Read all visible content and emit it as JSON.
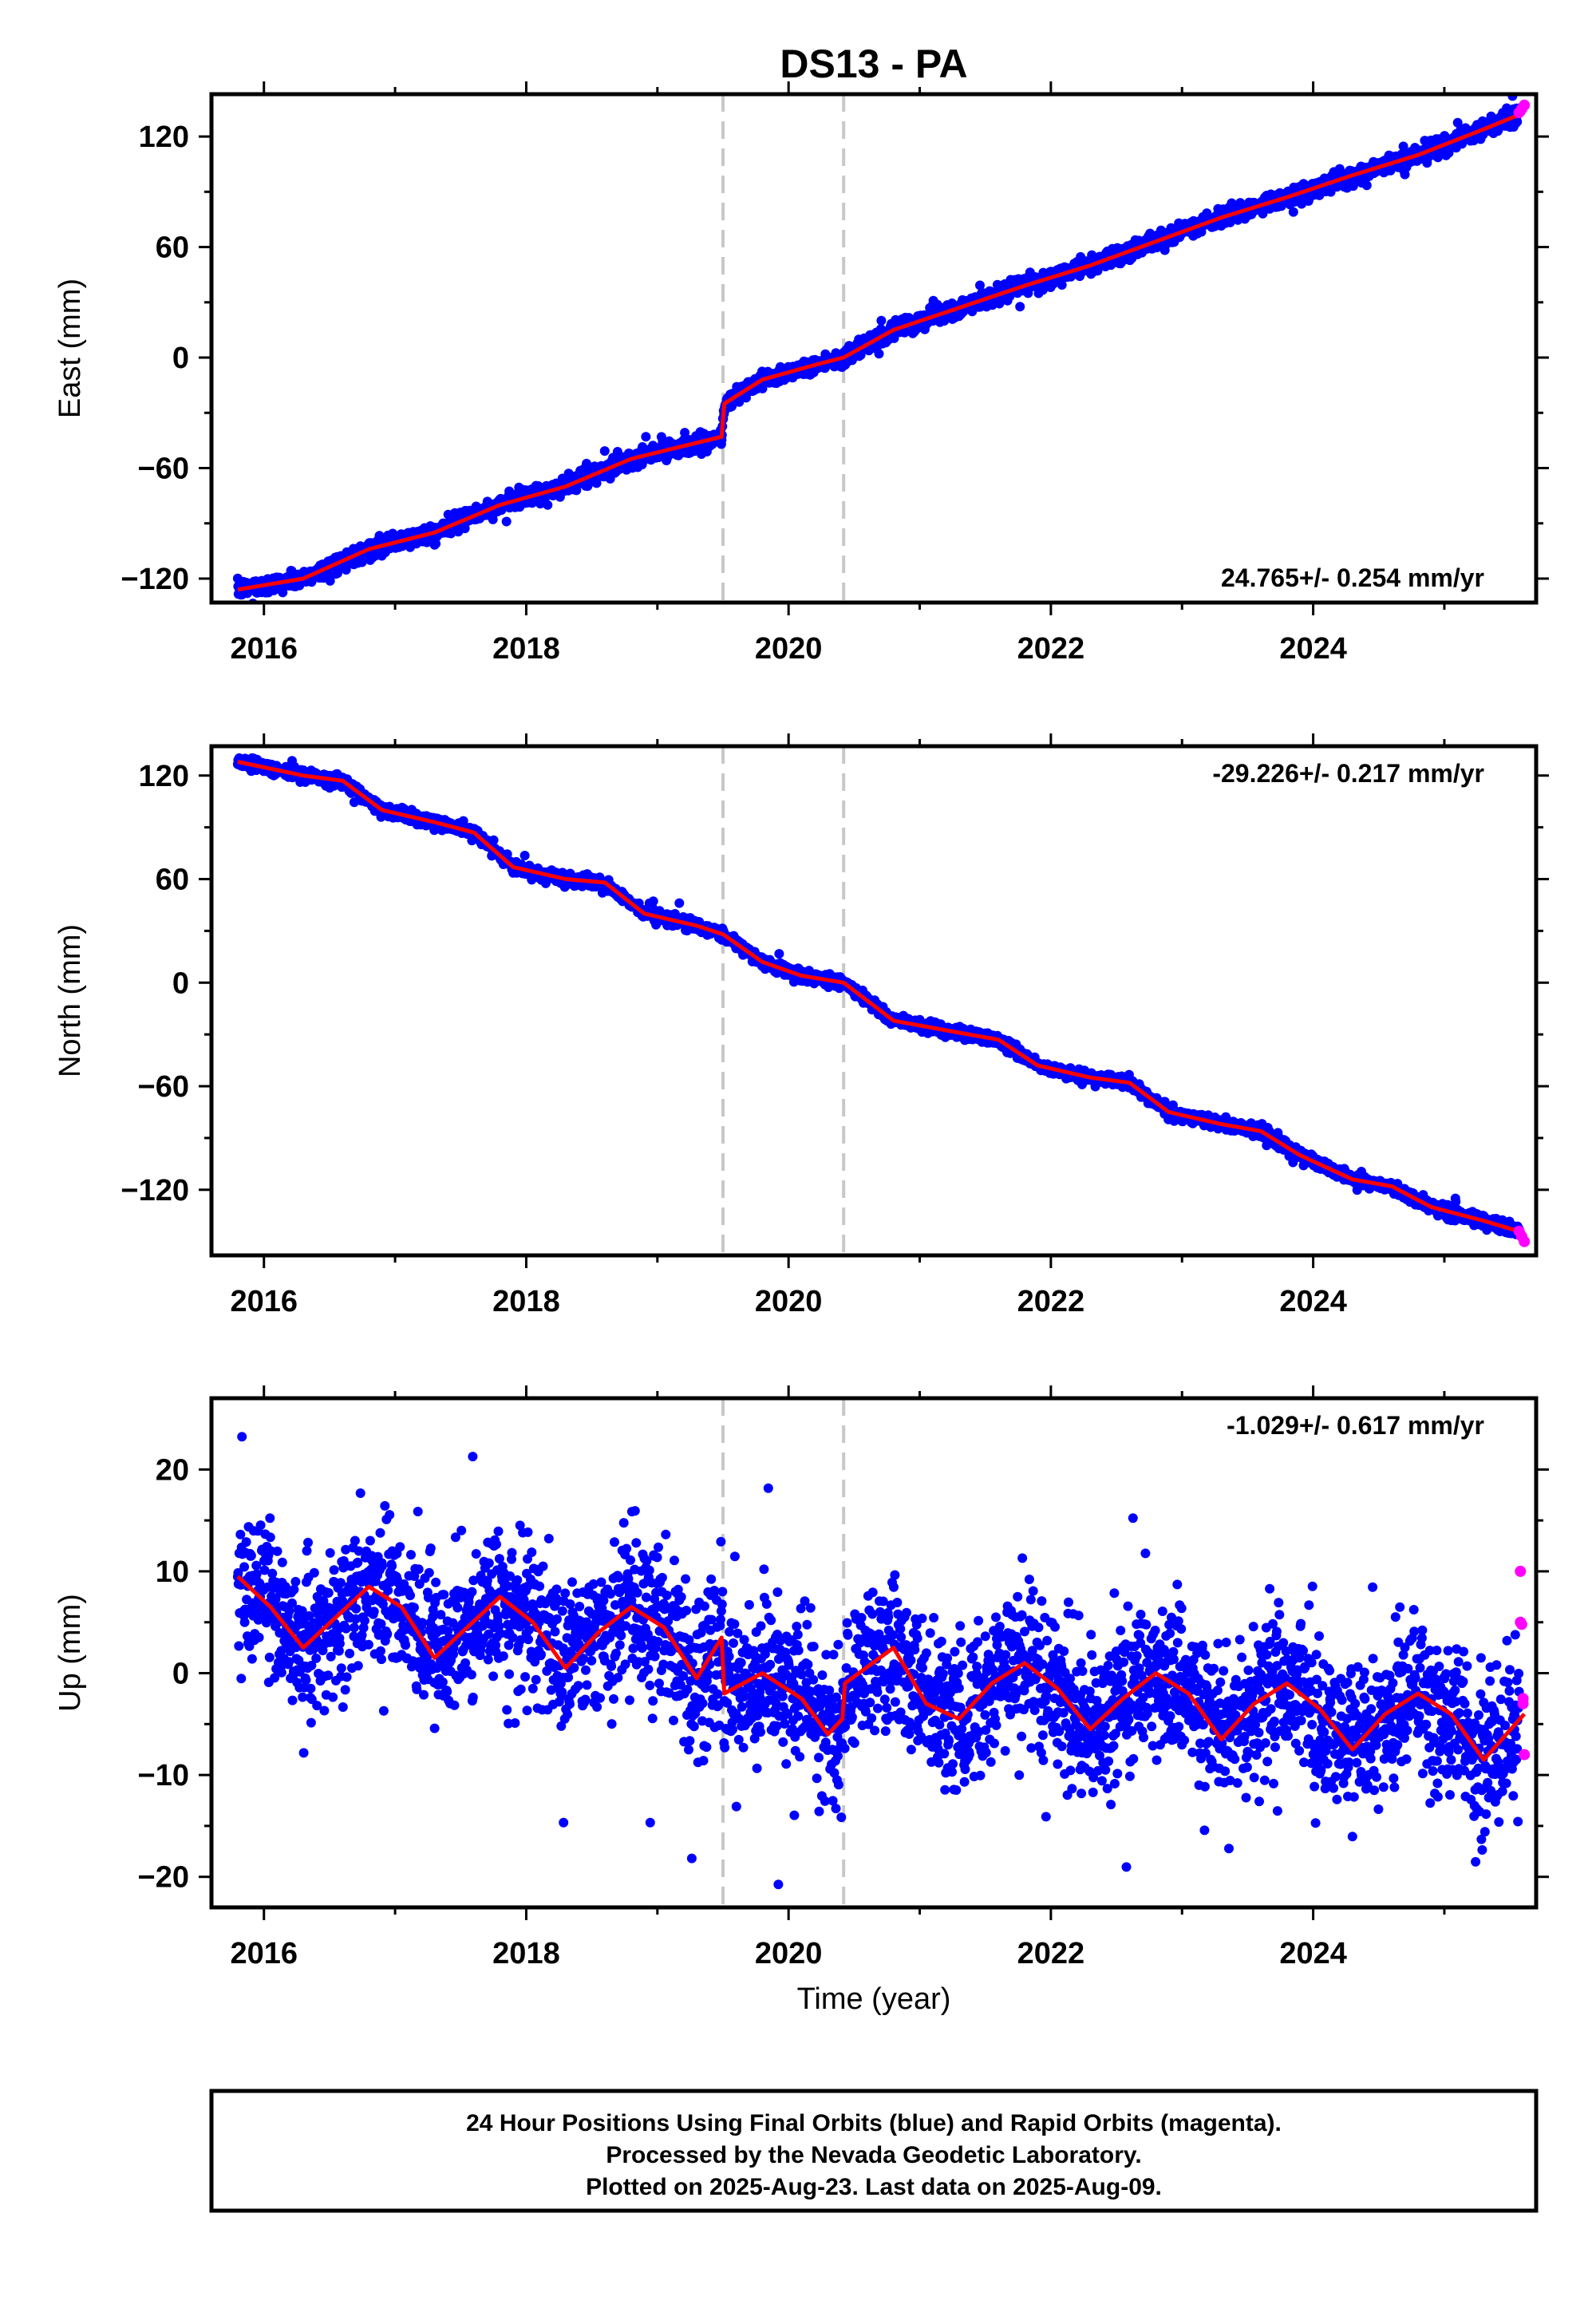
{
  "title": "DS13 - PA",
  "xlabel": "Time (year)",
  "footer": [
    "24 Hour Positions Using Final Orbits (blue) and Rapid Orbits (magenta).",
    "Processed by the Nevada Geodetic Laboratory.",
    "Plotted on 2025-Aug-23. Last data on 2025-Aug-09."
  ],
  "colors": {
    "final": "#0000ff",
    "rapid": "#ff00ff",
    "model": "#ff0000",
    "event_line": "#c8c8c8",
    "frame": "#000000"
  },
  "chart_data": [
    {
      "type": "scatter",
      "component": "east",
      "ylabel": "East (mm)",
      "rate_text": "24.765+/- 0.254 mm/yr",
      "rate": 24.765,
      "xlim": [
        2015.6,
        2025.7
      ],
      "ylim": [
        -133,
        143
      ],
      "xticks": [
        2016,
        2018,
        2020,
        2022,
        2024
      ],
      "yticks": [
        -120,
        -60,
        0,
        60,
        120
      ],
      "grid": false,
      "event_lines": [
        2019.5,
        2020.42
      ],
      "start_time": 2015.8,
      "end_time": 2025.61,
      "seasonal_amplitude": 2.5,
      "noise_sd": 2.2,
      "model": {
        "x": [
          2015.8,
          2016.3,
          2016.8,
          2017.3,
          2017.8,
          2018.3,
          2018.8,
          2019.2,
          2019.49,
          2019.51,
          2019.8,
          2020.2,
          2020.42,
          2020.8,
          2021.3,
          2021.8,
          2022.3,
          2022.8,
          2023.3,
          2023.8,
          2024.3,
          2024.8,
          2025.3,
          2025.61
        ],
        "y": [
          -126,
          -120,
          -104,
          -95,
          -80,
          -70,
          -55,
          -48,
          -43,
          -25,
          -12,
          -4,
          0,
          15,
          27,
          39,
          50,
          63,
          76,
          87,
          99,
          110,
          124,
          133
        ]
      },
      "rapid": {
        "x": [
          2025.57,
          2025.59,
          2025.61
        ],
        "y": [
          133,
          135,
          137
        ]
      }
    },
    {
      "type": "scatter",
      "component": "north",
      "ylabel": "North (mm)",
      "rate_text": "-29.226+/- 0.217 mm/yr",
      "rate": -29.226,
      "xlim": [
        2015.6,
        2025.7
      ],
      "ylim": [
        -158,
        137
      ],
      "xticks": [
        2016,
        2018,
        2020,
        2022,
        2024
      ],
      "yticks": [
        -120,
        -60,
        0,
        60,
        120
      ],
      "grid": false,
      "event_lines": [
        2019.5,
        2020.42
      ],
      "start_time": 2015.8,
      "end_time": 2025.61,
      "seasonal_amplitude": 1.5,
      "noise_sd": 1.6,
      "model": {
        "x": [
          2015.8,
          2016.3,
          2016.6,
          2016.9,
          2017.3,
          2017.6,
          2017.9,
          2018.3,
          2018.6,
          2018.9,
          2019.3,
          2019.5,
          2019.8,
          2020.1,
          2020.42,
          2020.8,
          2021.3,
          2021.6,
          2021.9,
          2022.3,
          2022.6,
          2022.9,
          2023.3,
          2023.6,
          2023.9,
          2024.3,
          2024.6,
          2024.9,
          2025.3,
          2025.61
        ],
        "y": [
          128,
          120,
          117,
          100,
          93,
          87,
          67,
          60,
          58,
          40,
          33,
          28,
          12,
          4,
          0,
          -22,
          -29,
          -33,
          -48,
          -55,
          -58,
          -75,
          -82,
          -86,
          -100,
          -114,
          -118,
          -130,
          -138,
          -145
        ]
      },
      "rapid": {
        "x": [
          2025.57,
          2025.59,
          2025.61
        ],
        "y": [
          -144,
          -147,
          -150
        ]
      }
    },
    {
      "type": "scatter",
      "component": "up",
      "ylabel": "Up (mm)",
      "rate_text": "-1.029+/- 0.617 mm/yr",
      "rate": -1.029,
      "xlim": [
        2015.6,
        2025.7
      ],
      "ylim": [
        -23,
        27
      ],
      "xticks": [
        2016,
        2018,
        2020,
        2022,
        2024
      ],
      "yticks": [
        -20,
        -10,
        0,
        10,
        20
      ],
      "grid": false,
      "event_lines": [
        2019.5,
        2020.42
      ],
      "start_time": 2015.8,
      "end_time": 2025.61,
      "seasonal_amplitude": 3.5,
      "noise_sd": 3.6,
      "model": {
        "x": [
          2015.8,
          2016.05,
          2016.3,
          2016.55,
          2016.8,
          2017.05,
          2017.3,
          2017.55,
          2017.8,
          2018.05,
          2018.3,
          2018.55,
          2018.8,
          2019.05,
          2019.3,
          2019.49,
          2019.51,
          2019.8,
          2020.1,
          2020.3,
          2020.41,
          2020.43,
          2020.8,
          2021.05,
          2021.3,
          2021.55,
          2021.8,
          2022.05,
          2022.3,
          2022.55,
          2022.8,
          2023.05,
          2023.3,
          2023.55,
          2023.8,
          2024.05,
          2024.3,
          2024.55,
          2024.8,
          2025.05,
          2025.3,
          2025.61
        ],
        "y": [
          9.5,
          6.5,
          2.5,
          5.5,
          8.5,
          6.5,
          1.5,
          4.5,
          7.5,
          5,
          0.5,
          4,
          6.5,
          4.5,
          -0.5,
          3.5,
          -2,
          0,
          -2.5,
          -6,
          -4.5,
          -1,
          2.5,
          -3,
          -4.5,
          -1,
          1,
          -1.5,
          -5.5,
          -2.5,
          0,
          -2,
          -6.5,
          -3,
          -1,
          -3.5,
          -7.5,
          -4,
          -2,
          -4,
          -8.5,
          -4
        ]
      },
      "rapid": {
        "x": [
          2025.58,
          2025.58,
          2025.59,
          2025.6,
          2025.6,
          2025.61
        ],
        "y": [
          10,
          5,
          4.8,
          -2.5,
          -3,
          -8
        ]
      }
    }
  ]
}
